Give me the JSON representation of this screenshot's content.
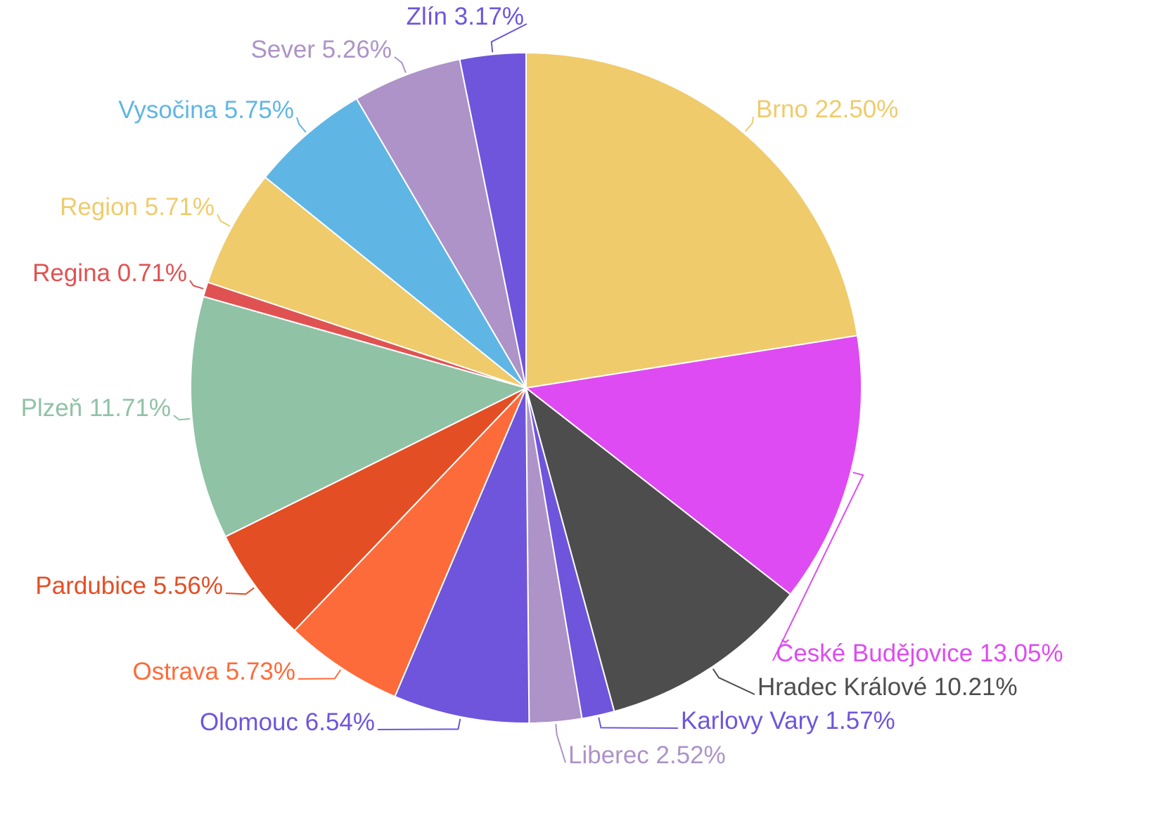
{
  "chart_data": {
    "type": "pie",
    "categories": [
      "Brno",
      "České Budějovice",
      "Hradec Králové",
      "Karlovy Vary",
      "Liberec",
      "Olomouc",
      "Ostrava",
      "Pardubice",
      "Plzeň",
      "Regina",
      "Region",
      "Vysočina",
      "Sever",
      "Zlín"
    ],
    "values": [
      22.5,
      13.05,
      10.21,
      1.57,
      2.52,
      6.54,
      5.73,
      5.56,
      11.71,
      0.71,
      5.71,
      5.75,
      5.26,
      3.17
    ],
    "value_labels": [
      "22.50%",
      "13.05%",
      "10.21%",
      "1.57%",
      "2.52%",
      "6.54%",
      "5.73%",
      "5.56%",
      "11.71%",
      "0.71%",
      "5.71%",
      "5.75%",
      "5.26%",
      "3.17%"
    ],
    "colors": [
      "#efcb6b",
      "#de4bf2",
      "#4d4d4d",
      "#6e55dc",
      "#ad93c8",
      "#6e55dc",
      "#fd6b3a",
      "#e44e24",
      "#90c2a6",
      "#e05252",
      "#efcb6b",
      "#5fb6e5",
      "#ad93c8",
      "#6e55dc"
    ]
  }
}
